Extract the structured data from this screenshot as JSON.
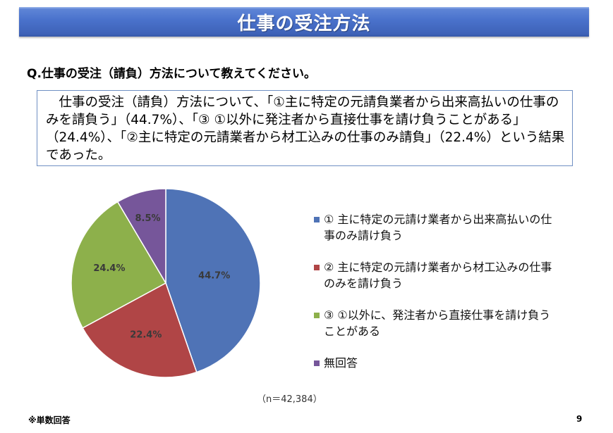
{
  "header": {
    "title": "仕事の受注方法"
  },
  "question": "Q.仕事の受注（請負）方法について教えてください。",
  "summary": "仕事の受注（請負）方法について、「①主に特定の元請負業者から出来高払いの仕事のみを請負う」（44.7%）、「③ ①以外に発注者から直接仕事を請け負うことがある」（24.4%）、「②主に特定の元請業者から材工込みの仕事のみ請負」（22.4%）という結果であった。",
  "chart_data": {
    "type": "pie",
    "title": "仕事の受注方法",
    "start_angle": "12 o'clock, clockwise",
    "categories": [
      "① 主に特定の元請け業者から出来高払いの仕事のみ請け負う",
      "② 主に特定の元請け業者から材工込みの仕事のみを請け負う",
      "③ ①以外に、発注者から直接仕事を請け負うことがある",
      "無回答"
    ],
    "values": [
      44.7,
      22.4,
      24.4,
      8.5
    ],
    "value_labels": [
      "44.7%",
      "22.4%",
      "24.4%",
      "8.5%"
    ],
    "colors": [
      "#4f73b6",
      "#b04546",
      "#8db04b",
      "#76569a"
    ],
    "legend_position": "right",
    "sample_size": "（n＝42,384）"
  },
  "legend": {
    "items": [
      {
        "label": "① 主に特定の元請け業者から出来高払いの仕事のみ請け負う",
        "color": "#4f73b6"
      },
      {
        "label": "② 主に特定の元請け業者から材工込みの仕事のみを請け負う",
        "color": "#b04546"
      },
      {
        "label": "③ ①以外に、発注者から直接仕事を請け負うことがある",
        "color": "#8db04b"
      },
      {
        "label": "無回答",
        "color": "#76569a"
      }
    ]
  },
  "footer": {
    "note": "※単数回答",
    "page": "9"
  }
}
